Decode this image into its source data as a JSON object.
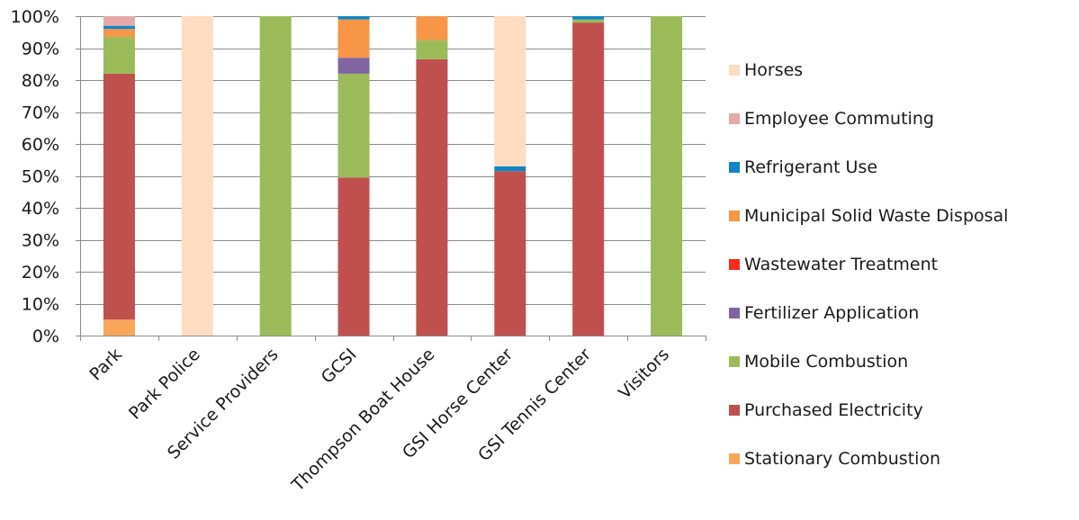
{
  "chart_data": {
    "type": "bar",
    "stacked": true,
    "percent": true,
    "title": "",
    "xlabel": "",
    "ylabel": "",
    "ylim": [
      0,
      100
    ],
    "yticks": [
      "0%",
      "10%",
      "20%",
      "30%",
      "40%",
      "50%",
      "60%",
      "70%",
      "80%",
      "90%",
      "100%"
    ],
    "grid": "horizontal",
    "legend_position": "right",
    "categories": [
      "Park",
      "Park Police",
      "Service Providers",
      "GCSI",
      "Thompson Boat House",
      "GSI Horse Center",
      "GSI Tennis Center",
      "Visitors"
    ],
    "series": [
      {
        "name": "Stationary Combustion",
        "color": "#f9a65a",
        "values": [
          5,
          0,
          0,
          0,
          0,
          0,
          0,
          0
        ]
      },
      {
        "name": "Purchased Electricity",
        "color": "#c0504d",
        "values": [
          77,
          0,
          0,
          49.5,
          86.5,
          51.5,
          98,
          0
        ]
      },
      {
        "name": "Mobile Combustion",
        "color": "#9bbb59",
        "values": [
          11.5,
          0,
          100,
          32.5,
          6,
          0,
          1,
          100
        ]
      },
      {
        "name": "Fertilizer Application",
        "color": "#8064a2",
        "values": [
          0,
          0,
          0,
          5,
          0,
          0,
          0,
          0
        ]
      },
      {
        "name": "Wastewater Treatment",
        "color": "#ff2a1a",
        "values": [
          0,
          0,
          0,
          0,
          0,
          0,
          0,
          0
        ]
      },
      {
        "name": "Municipal Solid Waste Disposal",
        "color": "#f79646",
        "values": [
          2.5,
          0,
          0,
          12,
          7.5,
          0,
          0,
          0
        ]
      },
      {
        "name": "Refrigerant Use",
        "color": "#0f86c6",
        "values": [
          1,
          0,
          0,
          1,
          0,
          1.5,
          1,
          0
        ]
      },
      {
        "name": "Employee Commuting",
        "color": "#e6a9a8",
        "values": [
          3,
          0,
          0,
          0,
          0,
          0,
          0,
          0
        ]
      },
      {
        "name": "Horses",
        "color": "#fddcc1",
        "values": [
          0,
          100,
          0,
          0,
          0,
          47,
          0,
          0
        ]
      }
    ],
    "legend_order": [
      "Horses",
      "Employee Commuting",
      "Refrigerant Use",
      "Municipal Solid Waste Disposal",
      "Wastewater Treatment",
      "Fertilizer Application",
      "Mobile Combustion",
      "Purchased Electricity",
      "Stationary Combustion"
    ]
  }
}
